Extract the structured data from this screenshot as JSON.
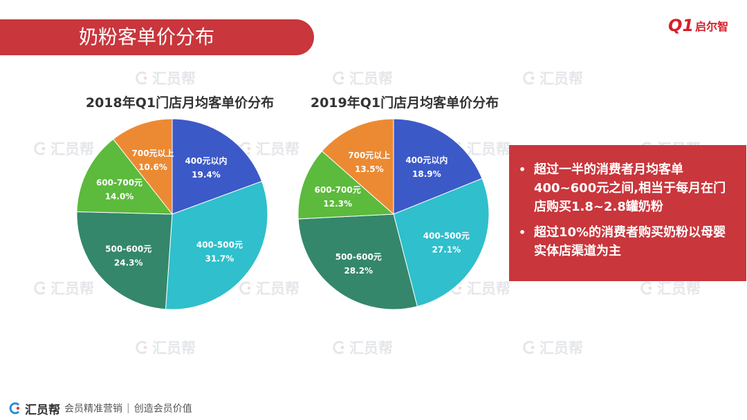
{
  "header": {
    "title": "奶粉客单价分布",
    "logo_mark": "Q1",
    "logo_text": "启尔智"
  },
  "watermark": {
    "text": "汇员帮"
  },
  "chart_data": [
    {
      "type": "pie",
      "title": "2018年Q1门店月均客单价分布",
      "slices": [
        {
          "label": "400元以内",
          "value": 19.4,
          "display": "19.4%",
          "color": "#3c59c8"
        },
        {
          "label": "400-500元",
          "value": 31.7,
          "display": "31.7%",
          "color": "#30bfcc"
        },
        {
          "label": "500-600元",
          "value": 24.3,
          "display": "24.3%",
          "color": "#34876a"
        },
        {
          "label": "600-700元",
          "value": 14.0,
          "display": "14.0%",
          "color": "#5cba3c"
        },
        {
          "label": "700元以上",
          "value": 10.6,
          "display": "10.6%",
          "color": "#ec8a33"
        }
      ]
    },
    {
      "type": "pie",
      "title": "2019年Q1门店月均客单价分布",
      "slices": [
        {
          "label": "400元以内",
          "value": 18.9,
          "display": "18.9%",
          "color": "#3c59c8"
        },
        {
          "label": "400-500元",
          "value": 27.1,
          "display": "27.1%",
          "color": "#30bfcc"
        },
        {
          "label": "500-600元",
          "value": 28.2,
          "display": "28.2%",
          "color": "#34876a"
        },
        {
          "label": "600-700元",
          "value": 12.3,
          "display": "12.3%",
          "color": "#5cba3c"
        },
        {
          "label": "700元以上",
          "value": 13.5,
          "display": "13.5%",
          "color": "#ec8a33"
        }
      ]
    }
  ],
  "callout": {
    "bullets": [
      "超过一半的消费者月均客单400~600元之间,相当于每月在门店购买1.8~2.8罐奶粉",
      "超过10%的消费者购买奶粉以母婴实体店渠道为主"
    ],
    "bullet_symbol": "•"
  },
  "footer": {
    "brand": "汇员帮",
    "slogan_1": "会员精准营销",
    "slogan_2": "创造会员价值",
    "separator": "|"
  }
}
